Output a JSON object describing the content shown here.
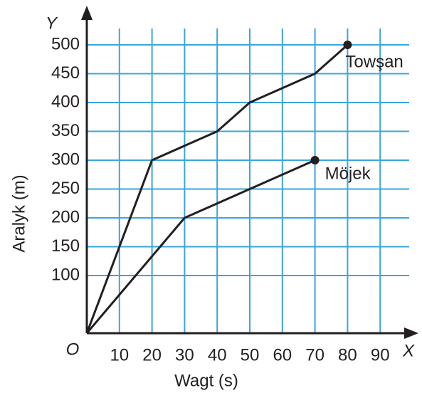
{
  "chart_data": {
    "type": "line",
    "x_label": "Wagt (s)",
    "y_label": "Aralyk (m)",
    "x_axis_letter": "X",
    "y_axis_letter": "Y",
    "xlim": [
      0,
      100
    ],
    "ylim": [
      0,
      550
    ],
    "xticks": [
      {
        "value": 0,
        "label": "O"
      },
      10,
      20,
      30,
      40,
      50,
      60,
      70,
      80,
      90
    ],
    "yticks": [
      100,
      150,
      200,
      250,
      300,
      350,
      400,
      450,
      500
    ],
    "grid": true,
    "grid_color": "#3aa6dd",
    "series": [
      {
        "name": "Towşan",
        "color": "#231f20",
        "x": [
          0,
          10,
          20,
          40,
          50,
          70,
          80
        ],
        "values": [
          0,
          150,
          300,
          350,
          400,
          450,
          500
        ]
      },
      {
        "name": "Möjek",
        "color": "#231f20",
        "x": [
          0,
          30,
          70
        ],
        "values": [
          0,
          200,
          300
        ]
      }
    ]
  }
}
